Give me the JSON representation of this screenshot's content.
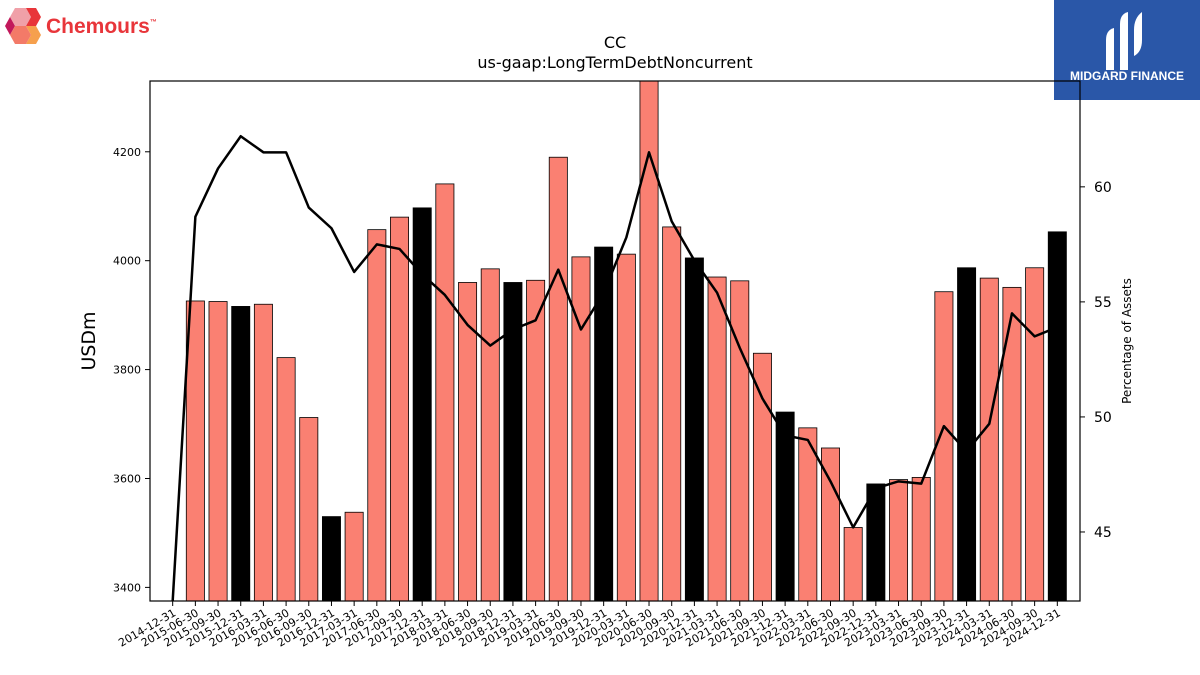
{
  "brand_left": {
    "name": "Chemours",
    "tm": "™"
  },
  "brand_right": {
    "name": "MIDGARD FINANCE"
  },
  "chart_data": {
    "type": "bar",
    "title": "CC",
    "subtitle": "us-gaap:LongTermDebtNoncurrent",
    "ylabel": "USDm",
    "y2label": "Percentage of Assets",
    "ylim": [
      3375,
      4330
    ],
    "y2lim": [
      42,
      64.6
    ],
    "yticks": [
      3400,
      3600,
      3800,
      4000,
      4200
    ],
    "y2ticks": [
      45,
      50,
      55,
      60
    ],
    "categories": [
      "2014-12-31",
      "2015-06-30",
      "2015-09-30",
      "2015-12-31",
      "2016-03-31",
      "2016-06-30",
      "2016-09-30",
      "2016-12-31",
      "2017-03-31",
      "2017-06-30",
      "2017-09-30",
      "2017-12-31",
      "2018-03-31",
      "2018-06-30",
      "2018-09-30",
      "2018-12-31",
      "2019-03-31",
      "2019-06-30",
      "2019-09-30",
      "2019-12-31",
      "2020-03-31",
      "2020-06-30",
      "2020-09-30",
      "2020-12-31",
      "2021-03-31",
      "2021-06-30",
      "2021-09-30",
      "2021-12-31",
      "2022-03-31",
      "2022-06-30",
      "2022-09-30",
      "2022-12-31",
      "2023-03-31",
      "2023-06-30",
      "2023-09-30",
      "2023-12-31",
      "2024-03-31",
      "2024-06-30",
      "2024-09-30",
      "2024-12-31"
    ],
    "series": [
      {
        "type": "bar",
        "values": [
          null,
          3926,
          3925,
          3916,
          3920,
          3822,
          3712,
          3530,
          3538,
          4057,
          4080,
          4097,
          4141,
          3960,
          3985,
          3960,
          3964,
          4190,
          4007,
          4025,
          4012,
          4330,
          4062,
          4005,
          3970,
          3963,
          3830,
          3722,
          3693,
          3656,
          3510,
          3590,
          3598,
          3602,
          3943,
          3987,
          3968,
          3951,
          3987,
          4053
        ],
        "colors": [
          "#fa8072",
          "#fa8072",
          "#fa8072",
          "#000000",
          "#fa8072",
          "#fa8072",
          "#fa8072",
          "#000000",
          "#fa8072",
          "#fa8072",
          "#fa8072",
          "#000000",
          "#fa8072",
          "#fa8072",
          "#fa8072",
          "#000000",
          "#fa8072",
          "#fa8072",
          "#fa8072",
          "#000000",
          "#fa8072",
          "#fa8072",
          "#fa8072",
          "#000000",
          "#fa8072",
          "#fa8072",
          "#fa8072",
          "#000000",
          "#fa8072",
          "#fa8072",
          "#fa8072",
          "#000000",
          "#fa8072",
          "#fa8072",
          "#fa8072",
          "#000000",
          "#fa8072",
          "#fa8072",
          "#fa8072",
          "#000000"
        ]
      },
      {
        "type": "line",
        "axis": "right",
        "color": "#000000",
        "values": [
          42.0,
          58.7,
          60.8,
          62.2,
          61.5,
          61.5,
          59.1,
          58.2,
          56.3,
          57.5,
          57.3,
          56.2,
          55.3,
          54.0,
          53.1,
          53.8,
          54.2,
          56.4,
          53.8,
          55.4,
          57.8,
          61.5,
          58.5,
          56.8,
          55.4,
          53.0,
          50.8,
          49.2,
          49.0,
          47.2,
          45.2,
          46.9,
          47.2,
          47.1,
          49.6,
          48.5,
          49.7,
          54.5,
          53.5,
          53.9
        ]
      }
    ],
    "colors": {
      "bar": "#fa8072",
      "bar_highlight": "#000000",
      "line": "#000000"
    },
    "legend": "none",
    "grid": false
  }
}
